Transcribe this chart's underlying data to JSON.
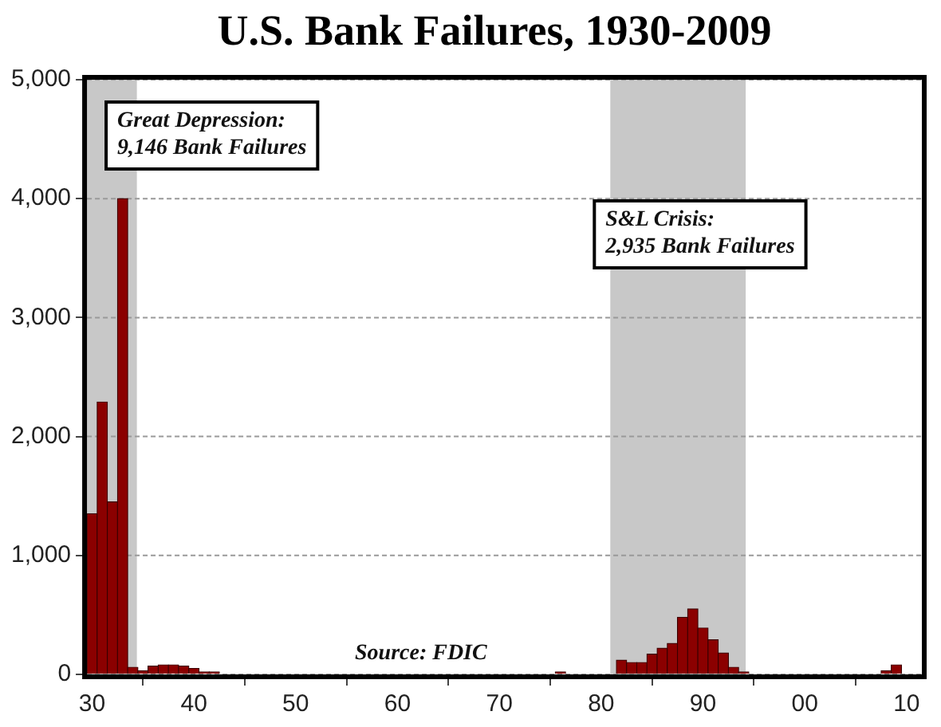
{
  "chart_data": {
    "type": "bar",
    "title": "U.S. Bank Failures, 1930-2009",
    "x": [
      1930,
      1931,
      1932,
      1933,
      1934,
      1935,
      1936,
      1937,
      1938,
      1939,
      1940,
      1941,
      1942,
      1943,
      1944,
      1945,
      1946,
      1947,
      1948,
      1949,
      1950,
      1951,
      1952,
      1953,
      1954,
      1955,
      1956,
      1957,
      1958,
      1959,
      1960,
      1961,
      1962,
      1963,
      1964,
      1965,
      1966,
      1967,
      1968,
      1969,
      1970,
      1971,
      1972,
      1973,
      1974,
      1975,
      1976,
      1977,
      1978,
      1979,
      1980,
      1981,
      1982,
      1983,
      1984,
      1985,
      1986,
      1987,
      1988,
      1989,
      1990,
      1991,
      1992,
      1993,
      1994,
      1995,
      1996,
      1997,
      1998,
      1999,
      2000,
      2001,
      2002,
      2003,
      2004,
      2005,
      2006,
      2007,
      2008,
      2009
    ],
    "values": [
      1350,
      2290,
      1450,
      4000,
      60,
      30,
      70,
      80,
      80,
      70,
      50,
      20,
      20,
      0,
      0,
      0,
      0,
      0,
      0,
      0,
      0,
      0,
      0,
      0,
      0,
      0,
      0,
      0,
      0,
      0,
      0,
      0,
      0,
      0,
      0,
      0,
      0,
      0,
      0,
      0,
      0,
      0,
      0,
      0,
      0,
      0,
      20,
      0,
      0,
      0,
      0,
      0,
      120,
      100,
      100,
      170,
      220,
      260,
      480,
      550,
      390,
      290,
      180,
      60,
      20,
      0,
      0,
      0,
      0,
      0,
      0,
      0,
      0,
      0,
      0,
      0,
      0,
      0,
      30,
      80
    ],
    "color": "#8b0000",
    "xlim": [
      1929.5,
      2011.5
    ],
    "xticks": [
      {
        "value": 1930,
        "label": "30"
      },
      {
        "value": 1940,
        "label": "40"
      },
      {
        "value": 1950,
        "label": "50"
      },
      {
        "value": 1960,
        "label": "60"
      },
      {
        "value": 1970,
        "label": "70"
      },
      {
        "value": 1980,
        "label": "80"
      },
      {
        "value": 1990,
        "label": "90"
      },
      {
        "value": 2000,
        "label": "00"
      },
      {
        "value": 2010,
        "label": "10"
      }
    ],
    "ylim": [
      0,
      5000
    ],
    "yticks": [
      {
        "value": 0,
        "label": "0"
      },
      {
        "value": 1000,
        "label": "1,000"
      },
      {
        "value": 2000,
        "label": "2,000"
      },
      {
        "value": 3000,
        "label": "3,000"
      },
      {
        "value": 4000,
        "label": "4,000"
      },
      {
        "value": 5000,
        "label": "5,000"
      }
    ],
    "grid": "y",
    "bands": [
      {
        "axis": "x",
        "from": 1929.5,
        "to": 1934.4,
        "label": "Great Depression:\n9,146 Bank Failures",
        "color": "#c8c8c8"
      },
      {
        "axis": "x",
        "from": 1980.9,
        "to": 1994.2,
        "label": "S&L Crisis:\n2,935 Bank Failures",
        "color": "#c8c8c8"
      }
    ],
    "annotations": [
      "Source: FDIC"
    ]
  }
}
